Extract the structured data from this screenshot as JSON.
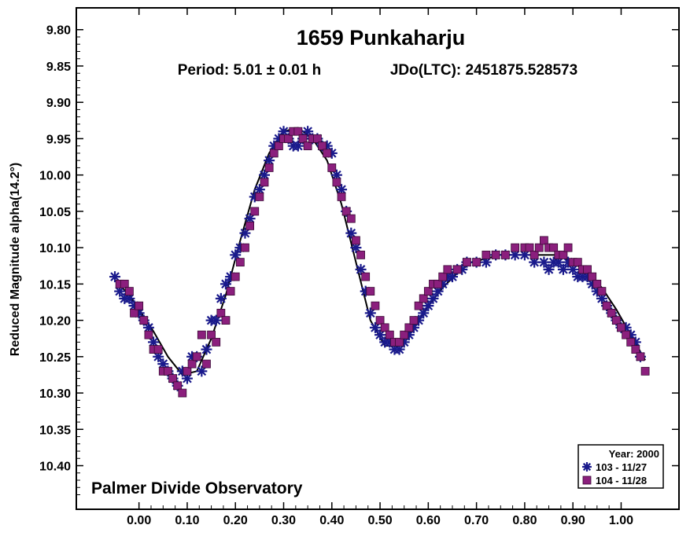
{
  "chart_data": {
    "type": "scatter",
    "title": "1659 Punkaharju",
    "period_text": "Period: 5.01 ± 0.01 h",
    "epoch_text": "JDo(LTC): 2451875.528573",
    "xlabel": "",
    "ylabel": "Reduced Magnitude alpha(14.2°)",
    "annotation": "Palmer Divide Observatory",
    "xlim": [
      -0.13,
      1.12
    ],
    "ylim": [
      9.77,
      10.46
    ],
    "y_inverted": true,
    "grid": false,
    "legend_position": "bottom-right",
    "xticks": [
      "0.00",
      "0.10",
      "0.20",
      "0.30",
      "0.40",
      "0.50",
      "0.60",
      "0.70",
      "0.80",
      "0.90",
      "1.00"
    ],
    "yticks": [
      "9.80",
      "9.85",
      "9.90",
      "9.95",
      "10.00",
      "10.05",
      "10.10",
      "10.15",
      "10.20",
      "10.25",
      "10.30",
      "10.35",
      "10.40"
    ],
    "legend_title": "Year: 2000",
    "series": [
      {
        "name": "103 - 11/27",
        "marker": "asterisk",
        "color": "#1a1a8c",
        "x": [
          -0.05,
          -0.04,
          -0.03,
          -0.02,
          -0.01,
          0.0,
          0.01,
          0.02,
          0.03,
          0.04,
          0.05,
          0.06,
          0.07,
          0.08,
          0.09,
          0.1,
          0.11,
          0.12,
          0.13,
          0.14,
          0.15,
          0.16,
          0.17,
          0.18,
          0.19,
          0.2,
          0.21,
          0.22,
          0.23,
          0.24,
          0.25,
          0.26,
          0.27,
          0.28,
          0.29,
          0.3,
          0.31,
          0.32,
          0.33,
          0.34,
          0.35,
          0.36,
          0.37,
          0.38,
          0.39,
          0.4,
          0.41,
          0.42,
          0.43,
          0.44,
          0.45,
          0.46,
          0.47,
          0.48,
          0.49,
          0.5,
          0.51,
          0.52,
          0.53,
          0.54,
          0.55,
          0.56,
          0.57,
          0.58,
          0.59,
          0.6,
          0.61,
          0.62,
          0.63,
          0.64,
          0.65,
          0.66,
          0.67,
          0.68,
          0.7,
          0.72,
          0.74,
          0.76,
          0.78,
          0.8,
          0.82,
          0.84,
          0.85,
          0.86,
          0.87,
          0.88,
          0.89,
          0.9,
          0.91,
          0.92,
          0.93,
          0.94,
          0.95,
          0.96,
          0.97,
          0.98,
          0.99,
          1.0,
          1.01,
          1.02,
          1.03,
          1.04
        ],
        "y": [
          10.14,
          10.16,
          10.17,
          10.17,
          10.18,
          10.19,
          10.2,
          10.21,
          10.23,
          10.25,
          10.26,
          10.27,
          10.28,
          10.29,
          10.27,
          10.28,
          10.25,
          10.25,
          10.27,
          10.24,
          10.2,
          10.2,
          10.17,
          10.15,
          10.14,
          10.11,
          10.1,
          10.08,
          10.06,
          10.03,
          10.02,
          10.0,
          9.98,
          9.96,
          9.95,
          9.94,
          9.95,
          9.96,
          9.96,
          9.95,
          9.94,
          9.95,
          9.95,
          9.96,
          9.96,
          9.97,
          10.0,
          10.02,
          10.05,
          10.08,
          10.1,
          10.13,
          10.16,
          10.19,
          10.21,
          10.22,
          10.23,
          10.23,
          10.24,
          10.24,
          10.23,
          10.22,
          10.21,
          10.2,
          10.19,
          10.18,
          10.17,
          10.16,
          10.15,
          10.14,
          10.14,
          10.13,
          10.13,
          10.12,
          10.12,
          10.12,
          10.11,
          10.11,
          10.11,
          10.11,
          10.12,
          10.12,
          10.13,
          10.12,
          10.12,
          10.13,
          10.12,
          10.13,
          10.14,
          10.14,
          10.14,
          10.15,
          10.16,
          10.17,
          10.18,
          10.19,
          10.2,
          10.21,
          10.21,
          10.22,
          10.23,
          10.25
        ]
      },
      {
        "name": "104 - 11/28",
        "marker": "square",
        "color": "#8b1f7d",
        "x": [
          -0.04,
          -0.03,
          -0.02,
          -0.01,
          0.0,
          0.01,
          0.02,
          0.03,
          0.04,
          0.05,
          0.06,
          0.07,
          0.08,
          0.09,
          0.1,
          0.11,
          0.12,
          0.13,
          0.14,
          0.15,
          0.16,
          0.17,
          0.18,
          0.19,
          0.2,
          0.21,
          0.22,
          0.23,
          0.24,
          0.25,
          0.26,
          0.27,
          0.28,
          0.29,
          0.3,
          0.31,
          0.32,
          0.33,
          0.34,
          0.35,
          0.36,
          0.37,
          0.38,
          0.39,
          0.4,
          0.41,
          0.42,
          0.43,
          0.44,
          0.45,
          0.46,
          0.47,
          0.48,
          0.49,
          0.5,
          0.51,
          0.52,
          0.53,
          0.54,
          0.55,
          0.56,
          0.57,
          0.58,
          0.59,
          0.6,
          0.61,
          0.62,
          0.63,
          0.64,
          0.66,
          0.68,
          0.7,
          0.72,
          0.74,
          0.76,
          0.78,
          0.8,
          0.81,
          0.82,
          0.83,
          0.84,
          0.85,
          0.86,
          0.87,
          0.88,
          0.89,
          0.9,
          0.91,
          0.92,
          0.93,
          0.94,
          0.95,
          0.96,
          0.97,
          0.98,
          0.99,
          1.0,
          1.01,
          1.02,
          1.03,
          1.04,
          1.05
        ],
        "y": [
          10.15,
          10.15,
          10.16,
          10.19,
          10.18,
          10.2,
          10.22,
          10.24,
          10.24,
          10.27,
          10.27,
          10.28,
          10.29,
          10.3,
          10.27,
          10.26,
          10.25,
          10.22,
          10.26,
          10.22,
          10.23,
          10.19,
          10.2,
          10.16,
          10.14,
          10.12,
          10.1,
          10.07,
          10.05,
          10.03,
          10.01,
          9.99,
          9.97,
          9.96,
          9.95,
          9.95,
          9.94,
          9.94,
          9.95,
          9.96,
          9.95,
          9.95,
          9.96,
          9.97,
          9.99,
          10.01,
          10.03,
          10.05,
          10.06,
          10.09,
          10.11,
          10.14,
          10.16,
          10.18,
          10.2,
          10.21,
          10.22,
          10.23,
          10.23,
          10.22,
          10.21,
          10.2,
          10.18,
          10.17,
          10.16,
          10.15,
          10.15,
          10.14,
          10.13,
          10.13,
          10.12,
          10.12,
          10.11,
          10.11,
          10.11,
          10.1,
          10.1,
          10.1,
          10.11,
          10.1,
          10.09,
          10.1,
          10.1,
          10.11,
          10.11,
          10.1,
          10.12,
          10.12,
          10.13,
          10.13,
          10.14,
          10.15,
          10.16,
          10.18,
          10.19,
          10.2,
          10.21,
          10.22,
          10.23,
          10.24,
          10.25,
          10.27
        ]
      }
    ],
    "fit_curve": {
      "x": [
        -0.05,
        -0.02,
        0.0,
        0.03,
        0.06,
        0.09,
        0.12,
        0.15,
        0.18,
        0.21,
        0.24,
        0.27,
        0.3,
        0.33,
        0.36,
        0.39,
        0.42,
        0.45,
        0.48,
        0.51,
        0.54,
        0.57,
        0.6,
        0.63,
        0.66,
        0.69,
        0.72,
        0.75,
        0.78,
        0.81,
        0.84,
        0.87,
        0.9,
        0.93,
        0.96,
        0.99,
        1.02,
        1.05
      ],
      "y": [
        10.145,
        10.165,
        10.185,
        10.215,
        10.25,
        10.275,
        10.27,
        10.225,
        10.165,
        10.09,
        10.02,
        9.97,
        9.94,
        9.935,
        9.95,
        9.98,
        10.04,
        10.12,
        10.2,
        10.235,
        10.235,
        10.21,
        10.18,
        10.155,
        10.135,
        10.12,
        10.115,
        10.11,
        10.11,
        10.11,
        10.11,
        10.11,
        10.12,
        10.135,
        10.155,
        10.185,
        10.22,
        10.255
      ]
    }
  }
}
